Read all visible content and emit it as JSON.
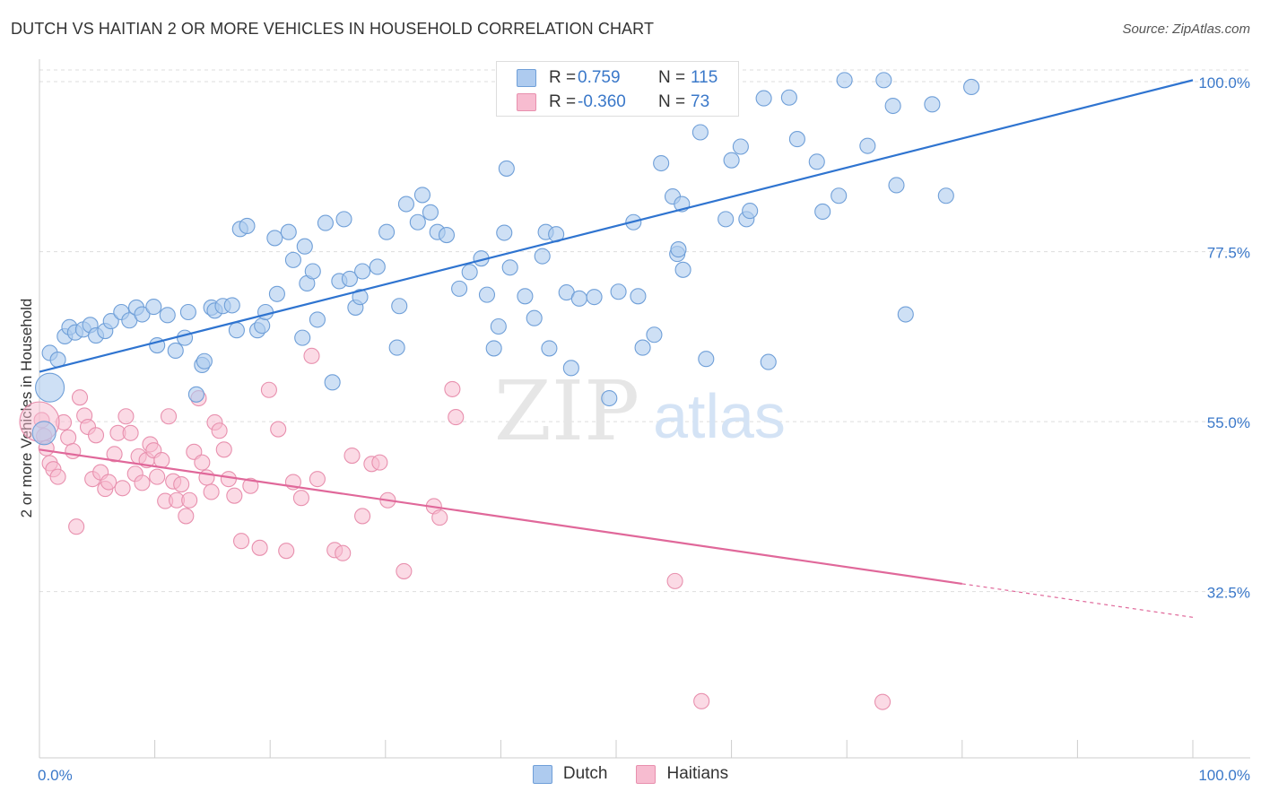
{
  "header": {
    "title": "DUTCH VS HAITIAN 2 OR MORE VEHICLES IN HOUSEHOLD CORRELATION CHART",
    "source": "Source: ZipAtlas.com"
  },
  "watermark": {
    "zip": "ZIP",
    "atlas": "atlas"
  },
  "legend": {
    "rows": [
      {
        "r_key": "R =",
        "r_value": "0.759",
        "n_key": "N =",
        "n_value": "115"
      },
      {
        "r_key": "R =",
        "r_value": "-0.360",
        "n_key": "N =",
        "n_value": "73"
      }
    ]
  },
  "bottom_legend": {
    "dutch": "Dutch",
    "haitians": "Haitians"
  },
  "colors": {
    "dutch_fill": "#aecbef",
    "dutch_stroke": "#6f9fd8",
    "dutch_line": "#2f74d0",
    "haitian_fill": "#f7bcd0",
    "haitian_stroke": "#e890ae",
    "haitian_line": "#e0689a",
    "tick_label": "#3a78c9",
    "grid": "#dddddd"
  },
  "chart_data": {
    "type": "scatter",
    "title": "DUTCH VS HAITIAN 2 OR MORE VEHICLES IN HOUSEHOLD CORRELATION CHART",
    "xlabel": "",
    "ylabel": "2 or more Vehicles in Household",
    "xlim": [
      0,
      100
    ],
    "ylim": [
      10.5,
      102.5
    ],
    "x_tick_labels": [
      "0.0%",
      "100.0%"
    ],
    "y_ticks": [
      32.5,
      55.0,
      77.5,
      100.0
    ],
    "y_tick_labels": [
      "32.5%",
      "55.0%",
      "77.5%",
      "100.0%"
    ],
    "series": [
      {
        "name": "Dutch",
        "R": 0.759,
        "N": 115,
        "trend": {
          "x": [
            0,
            100
          ],
          "y": [
            61.6,
            100.2
          ],
          "dashed_from": null
        },
        "points": [
          [
            0.9,
            64.1
          ],
          [
            1.6,
            63.2
          ],
          [
            2.2,
            66.3
          ],
          [
            2.6,
            67.5
          ],
          [
            3.1,
            66.8
          ],
          [
            3.8,
            67.2
          ],
          [
            4.4,
            67.8
          ],
          [
            4.9,
            66.4
          ],
          [
            5.7,
            67.0
          ],
          [
            6.2,
            68.3
          ],
          [
            7.1,
            69.5
          ],
          [
            7.8,
            68.4
          ],
          [
            8.4,
            70.1
          ],
          [
            8.9,
            69.2
          ],
          [
            9.9,
            70.2
          ],
          [
            10.2,
            65.1
          ],
          [
            11.1,
            69.1
          ],
          [
            11.8,
            64.4
          ],
          [
            12.6,
            66.1
          ],
          [
            12.9,
            69.5
          ],
          [
            13.6,
            58.6
          ],
          [
            14.1,
            62.5
          ],
          [
            14.3,
            63.0
          ],
          [
            14.9,
            70.1
          ],
          [
            15.2,
            69.7
          ],
          [
            15.9,
            70.3
          ],
          [
            16.7,
            70.4
          ],
          [
            17.1,
            67.1
          ],
          [
            17.4,
            80.5
          ],
          [
            18.0,
            80.9
          ],
          [
            18.9,
            67.1
          ],
          [
            19.3,
            67.7
          ],
          [
            19.6,
            69.5
          ],
          [
            20.4,
            79.3
          ],
          [
            20.6,
            71.9
          ],
          [
            21.6,
            80.1
          ],
          [
            22.0,
            76.4
          ],
          [
            22.8,
            66.1
          ],
          [
            23.0,
            78.2
          ],
          [
            23.2,
            73.3
          ],
          [
            23.7,
            74.9
          ],
          [
            24.1,
            68.5
          ],
          [
            24.8,
            81.3
          ],
          [
            25.4,
            60.2
          ],
          [
            26.0,
            73.6
          ],
          [
            26.4,
            81.8
          ],
          [
            26.9,
            73.9
          ],
          [
            27.4,
            70.1
          ],
          [
            27.8,
            71.5
          ],
          [
            28.0,
            74.9
          ],
          [
            29.3,
            75.5
          ],
          [
            30.1,
            80.1
          ],
          [
            31.0,
            64.8
          ],
          [
            31.2,
            70.3
          ],
          [
            31.8,
            83.8
          ],
          [
            32.8,
            81.4
          ],
          [
            33.2,
            85.0
          ],
          [
            33.9,
            82.7
          ],
          [
            34.5,
            80.1
          ],
          [
            35.3,
            79.7
          ],
          [
            36.4,
            72.6
          ],
          [
            37.3,
            74.8
          ],
          [
            38.3,
            76.6
          ],
          [
            38.8,
            71.8
          ],
          [
            39.4,
            64.7
          ],
          [
            39.8,
            67.6
          ],
          [
            40.3,
            80.0
          ],
          [
            40.5,
            88.5
          ],
          [
            40.8,
            75.4
          ],
          [
            42.1,
            71.6
          ],
          [
            42.9,
            68.7
          ],
          [
            43.6,
            76.9
          ],
          [
            43.9,
            80.1
          ],
          [
            44.2,
            64.7
          ],
          [
            44.8,
            79.8
          ],
          [
            45.7,
            72.1
          ],
          [
            46.1,
            62.1
          ],
          [
            46.8,
            71.3
          ],
          [
            48.1,
            71.5
          ],
          [
            49.4,
            58.1
          ],
          [
            50.2,
            72.2
          ],
          [
            51.9,
            71.6
          ],
          [
            51.5,
            81.4
          ],
          [
            52.3,
            64.8
          ],
          [
            53.3,
            66.5
          ],
          [
            53.9,
            89.2
          ],
          [
            54.9,
            84.8
          ],
          [
            55.3,
            77.2
          ],
          [
            55.4,
            77.8
          ],
          [
            55.7,
            83.8
          ],
          [
            55.8,
            75.1
          ],
          [
            57.3,
            93.3
          ],
          [
            57.8,
            63.3
          ],
          [
            58.4,
            96.8
          ],
          [
            59.5,
            81.8
          ],
          [
            60.0,
            89.6
          ],
          [
            60.8,
            91.4
          ],
          [
            61.3,
            81.8
          ],
          [
            61.6,
            82.9
          ],
          [
            62.8,
            97.8
          ],
          [
            63.2,
            62.9
          ],
          [
            65.0,
            97.9
          ],
          [
            65.7,
            92.4
          ],
          [
            67.4,
            89.4
          ],
          [
            67.9,
            82.8
          ],
          [
            69.3,
            84.9
          ],
          [
            69.8,
            100.2
          ],
          [
            71.8,
            91.5
          ],
          [
            73.2,
            100.2
          ],
          [
            74.0,
            96.8
          ],
          [
            74.3,
            86.3
          ],
          [
            75.1,
            69.2
          ],
          [
            77.4,
            97.0
          ],
          [
            78.6,
            84.9
          ],
          [
            80.8,
            99.3
          ]
        ]
      },
      {
        "name": "Haitians",
        "R": -0.36,
        "N": 73,
        "trend": {
          "x": [
            0,
            100
          ],
          "y": [
            51.3,
            29.1
          ],
          "dashed_from": 80.0
        },
        "points": [
          [
            0.2,
            55.2
          ],
          [
            0.4,
            53.1
          ],
          [
            0.6,
            51.5
          ],
          [
            0.9,
            49.5
          ],
          [
            1.2,
            48.7
          ],
          [
            1.6,
            47.7
          ],
          [
            2.1,
            54.9
          ],
          [
            2.5,
            52.9
          ],
          [
            2.9,
            51.1
          ],
          [
            3.2,
            41.1
          ],
          [
            3.5,
            58.2
          ],
          [
            3.9,
            55.8
          ],
          [
            4.2,
            54.3
          ],
          [
            4.6,
            47.4
          ],
          [
            4.9,
            53.2
          ],
          [
            5.3,
            48.3
          ],
          [
            5.7,
            46.1
          ],
          [
            6.0,
            47.0
          ],
          [
            6.5,
            50.7
          ],
          [
            6.8,
            53.5
          ],
          [
            7.2,
            46.2
          ],
          [
            7.5,
            55.7
          ],
          [
            7.9,
            53.5
          ],
          [
            8.3,
            48.1
          ],
          [
            8.6,
            50.4
          ],
          [
            8.9,
            46.9
          ],
          [
            9.3,
            49.9
          ],
          [
            9.6,
            52.0
          ],
          [
            9.9,
            51.2
          ],
          [
            10.2,
            47.7
          ],
          [
            10.6,
            49.9
          ],
          [
            10.9,
            44.5
          ],
          [
            11.2,
            55.7
          ],
          [
            11.6,
            47.1
          ],
          [
            11.9,
            44.6
          ],
          [
            12.3,
            46.7
          ],
          [
            12.7,
            42.5
          ],
          [
            13.0,
            44.6
          ],
          [
            13.4,
            51.0
          ],
          [
            13.8,
            58.1
          ],
          [
            14.1,
            49.6
          ],
          [
            14.5,
            47.6
          ],
          [
            14.9,
            45.7
          ],
          [
            15.2,
            54.9
          ],
          [
            15.6,
            53.8
          ],
          [
            16.0,
            51.3
          ],
          [
            16.4,
            47.4
          ],
          [
            16.9,
            45.2
          ],
          [
            17.5,
            39.2
          ],
          [
            18.3,
            46.5
          ],
          [
            19.1,
            38.3
          ],
          [
            19.9,
            59.2
          ],
          [
            20.7,
            54.0
          ],
          [
            21.4,
            37.9
          ],
          [
            22.0,
            47.0
          ],
          [
            22.7,
            44.9
          ],
          [
            23.6,
            63.7
          ],
          [
            24.1,
            47.4
          ],
          [
            25.6,
            38.0
          ],
          [
            26.3,
            37.6
          ],
          [
            27.1,
            50.5
          ],
          [
            28.0,
            42.5
          ],
          [
            28.8,
            49.4
          ],
          [
            29.5,
            49.6
          ],
          [
            30.2,
            44.6
          ],
          [
            31.6,
            35.2
          ],
          [
            34.2,
            43.8
          ],
          [
            34.7,
            42.3
          ],
          [
            35.8,
            59.3
          ],
          [
            36.1,
            55.6
          ],
          [
            55.1,
            33.9
          ],
          [
            57.4,
            18.0
          ],
          [
            73.1,
            17.9
          ]
        ]
      }
    ]
  }
}
